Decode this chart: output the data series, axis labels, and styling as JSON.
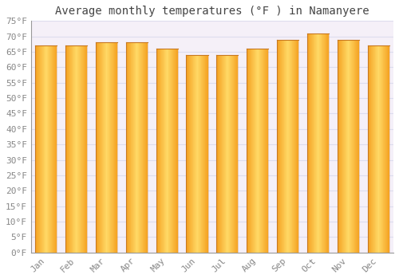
{
  "title": "Average monthly temperatures (°F ) in Namanyere",
  "months": [
    "Jan",
    "Feb",
    "Mar",
    "Apr",
    "May",
    "Jun",
    "Jul",
    "Aug",
    "Sep",
    "Oct",
    "Nov",
    "Dec"
  ],
  "values": [
    67,
    67,
    68,
    68,
    66,
    64,
    64,
    66,
    69,
    71,
    69,
    67
  ],
  "ylim": [
    0,
    75
  ],
  "yticks": [
    0,
    5,
    10,
    15,
    20,
    25,
    30,
    35,
    40,
    45,
    50,
    55,
    60,
    65,
    70,
    75
  ],
  "ytick_labels": [
    "0°F",
    "5°F",
    "10°F",
    "15°F",
    "20°F",
    "25°F",
    "30°F",
    "35°F",
    "40°F",
    "45°F",
    "50°F",
    "55°F",
    "60°F",
    "65°F",
    "70°F",
    "75°F"
  ],
  "bar_color_center": "#FFD966",
  "bar_color_edge": "#F4A020",
  "bar_edge_dark": "#C87820",
  "plot_bg_color": "#F5F0F8",
  "background_color": "#ffffff",
  "grid_color": "#ddddee",
  "title_fontsize": 10,
  "tick_fontsize": 8,
  "title_color": "#444444",
  "tick_color": "#888888"
}
